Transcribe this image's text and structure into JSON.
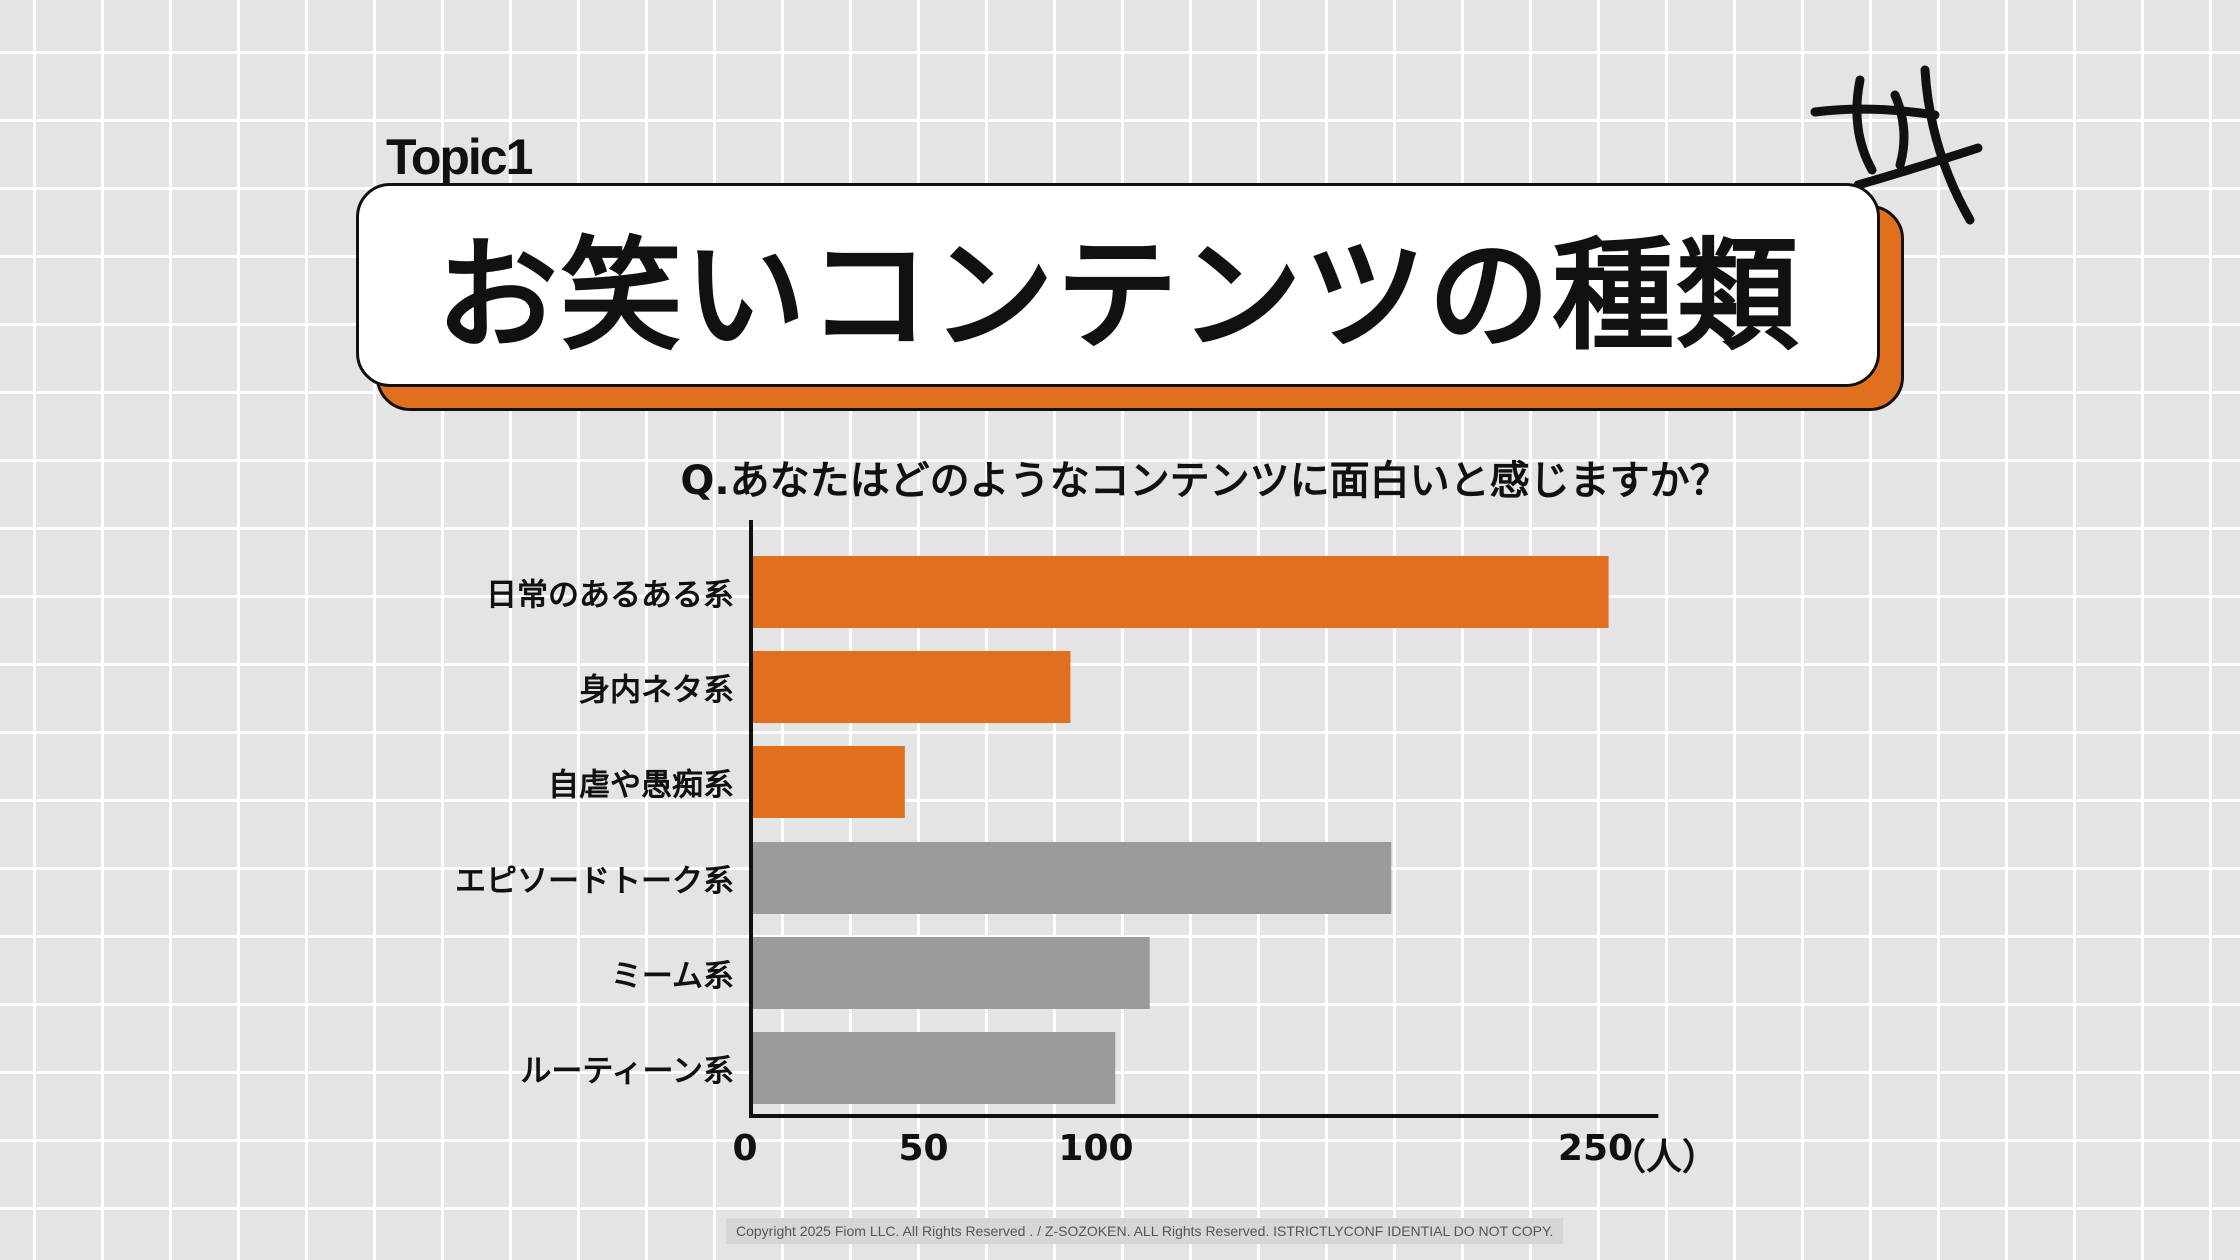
{
  "header": {
    "topic": "Topic1",
    "title": "お笑いコンテンツの種類"
  },
  "question": "Q.あなたはどのようなコンテンツに面白いと感じますか？",
  "footer": {
    "copyright": "Copyright 2025 Fiom LLC. All Rights Reserved . / Z-SOZOKEN. ALL Rights Reserved. ISTRICTLYCONF IDENTIAL DO NOT COPY."
  },
  "colors": {
    "accent": "#e0701e",
    "neutral": "#9b9b9b",
    "background": "#e4e4e4"
  },
  "icons": {
    "decoration": "hand-drawn-crossed-lines"
  },
  "chart_data": {
    "type": "bar",
    "orientation": "horizontal",
    "categories": [
      "日常のあるある系",
      "身内ネタ系",
      "自虐や愚痴系",
      "エピソードトーク系",
      "ミーム系",
      "ルーティーン系"
    ],
    "values": [
      248,
      92,
      44,
      185,
      115,
      105
    ],
    "highlighted": [
      true,
      true,
      true,
      false,
      false,
      false
    ],
    "xticks": [
      0,
      50,
      100,
      250
    ],
    "xtick_labels": [
      "0",
      "50",
      "100",
      "250"
    ],
    "xunit": "（人）",
    "xlim": [
      0,
      263
    ],
    "grid": false
  }
}
